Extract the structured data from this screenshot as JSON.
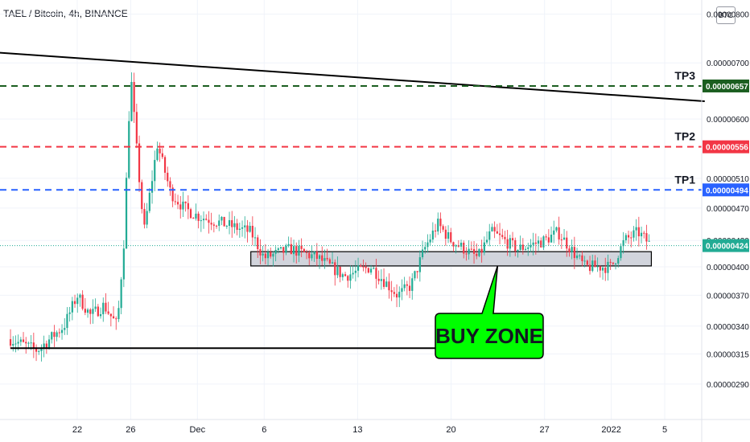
{
  "header": {
    "title": "TAEL / Bitcoin, 4h, BINANCE",
    "currency_badge": "BTC"
  },
  "chart_data": {
    "type": "candlestick",
    "symbol": "TAEL / Bitcoin",
    "interval": "4h",
    "exchange": "BINANCE",
    "y_scale": "log",
    "ylim": [
      2.75e-06,
      8.1e-06
    ],
    "y_ticks": [
      "0.00000800",
      "0.00000700",
      "0.00000600",
      "0.00000510",
      "0.00000470",
      "0.00000430",
      "0.00000400",
      "0.00000370",
      "0.00000340",
      "0.00000315",
      "0.00000290"
    ],
    "y_tick_values": [
      8e-06,
      7e-06,
      6e-06,
      5.1e-06,
      4.7e-06,
      4.3e-06,
      4e-06,
      3.7e-06,
      3.4e-06,
      3.15e-06,
      2.9e-06
    ],
    "x_ticks": [
      "22",
      "26",
      "Dec",
      "6",
      "13",
      "20",
      "27",
      "2022",
      "5"
    ],
    "x_tick_dates": [
      "2021-11-22",
      "2021-11-26",
      "2021-12-01",
      "2021-12-06",
      "2021-12-13",
      "2021-12-20",
      "2021-12-27",
      "2022-01-01",
      "2022-01-05"
    ],
    "x_range": [
      "2021-11-22",
      "2022-01-08"
    ],
    "levels": [
      {
        "name": "TP3",
        "price": "0.00000657",
        "value": 6.57e-06,
        "color": "#1b5e20",
        "style": "dashed"
      },
      {
        "name": "TP2",
        "price": "0.00000556",
        "value": 5.56e-06,
        "color": "#f23645",
        "style": "dashed"
      },
      {
        "name": "TP1",
        "price": "0.00000494",
        "value": 4.94e-06,
        "color": "#2962ff",
        "style": "dashed"
      }
    ],
    "last_price": {
      "price": "0.00000424",
      "value": 4.24e-06,
      "color": "#22ab94"
    },
    "buy_zone": {
      "label": "BUY ZONE",
      "low": 4.01e-06,
      "high": 4.17e-06,
      "start": "2021-12-05",
      "end": "2022-01-04"
    },
    "trendlines": [
      {
        "from": {
          "date": "2021-11-16",
          "value": 7.2e-06
        },
        "to": {
          "date": "2022-01-08",
          "value": 6.3e-06
        },
        "color": "#000000"
      },
      {
        "from": {
          "date": "2021-11-17",
          "value": 3.2e-06
        },
        "to": {
          "date": "2021-12-25",
          "value": 3.2e-06
        },
        "color": "#000000"
      }
    ],
    "colors": {
      "up": "#22ab94",
      "down": "#f23645",
      "grid": "#f0f3fa",
      "buy_zone_fill": "#d1d4dc",
      "callout_fill": "#00ff00"
    },
    "price_path": [
      {
        "date": "2021-11-17",
        "value": 3.28e-06
      },
      {
        "date": "2021-11-19",
        "value": 3.18e-06
      },
      {
        "date": "2021-11-21",
        "value": 3.4e-06
      },
      {
        "date": "2021-11-22",
        "value": 3.7e-06
      },
      {
        "date": "2021-11-23",
        "value": 3.5e-06
      },
      {
        "date": "2021-11-24",
        "value": 3.6e-06
      },
      {
        "date": "2021-11-25",
        "value": 3.4e-06
      },
      {
        "date": "2021-11-25.5",
        "value": 4.3e-06
      },
      {
        "date": "2021-11-26",
        "value": 6.8e-06
      },
      {
        "date": "2021-11-26.5",
        "value": 5.4e-06
      },
      {
        "date": "2021-11-27",
        "value": 4.4e-06
      },
      {
        "date": "2021-11-28",
        "value": 5.6e-06
      },
      {
        "date": "2021-11-29",
        "value": 4.9e-06
      },
      {
        "date": "2021-11-30",
        "value": 4.7e-06
      },
      {
        "date": "2021-12-01",
        "value": 4.6e-06
      },
      {
        "date": "2021-12-03",
        "value": 4.5e-06
      },
      {
        "date": "2021-12-05",
        "value": 4.4e-06
      },
      {
        "date": "2021-12-06",
        "value": 4.1e-06
      },
      {
        "date": "2021-12-08",
        "value": 4.2e-06
      },
      {
        "date": "2021-12-10",
        "value": 4.1e-06
      },
      {
        "date": "2021-12-12",
        "value": 3.9e-06
      },
      {
        "date": "2021-12-14",
        "value": 4e-06
      },
      {
        "date": "2021-12-16",
        "value": 3.7e-06
      },
      {
        "date": "2021-12-17",
        "value": 3.8e-06
      },
      {
        "date": "2021-12-18",
        "value": 4.2e-06
      },
      {
        "date": "2021-12-19",
        "value": 4.5e-06
      },
      {
        "date": "2021-12-20",
        "value": 4.3e-06
      },
      {
        "date": "2021-12-22",
        "value": 4.1e-06
      },
      {
        "date": "2021-12-23",
        "value": 4.4e-06
      },
      {
        "date": "2021-12-25",
        "value": 4.2e-06
      },
      {
        "date": "2021-12-27",
        "value": 4.3e-06
      },
      {
        "date": "2021-12-28",
        "value": 4.4e-06
      },
      {
        "date": "2021-12-30",
        "value": 4e-06
      },
      {
        "date": "2022-01-01",
        "value": 4e-06
      },
      {
        "date": "2022-01-02",
        "value": 4.3e-06
      },
      {
        "date": "2022-01-03",
        "value": 4.4e-06
      },
      {
        "date": "2022-01-04",
        "value": 4.24e-06
      }
    ]
  }
}
